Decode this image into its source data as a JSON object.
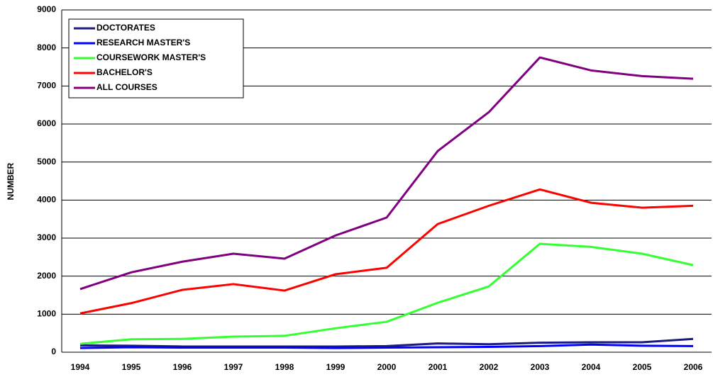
{
  "chart_data": {
    "type": "line",
    "y_label": "NUMBER",
    "categories": [
      "1994",
      "1995",
      "1996",
      "1997",
      "1998",
      "1999",
      "2000",
      "2001",
      "2002",
      "2003",
      "2004",
      "2005",
      "2006"
    ],
    "series": [
      {
        "name": "DOCTORATES",
        "color": "#1c1c80",
        "values": [
          180,
          170,
          150,
          150,
          150,
          150,
          160,
          230,
          210,
          250,
          260,
          260,
          350
        ]
      },
      {
        "name": "RESEARCH MASTER'S",
        "color": "#0000ff",
        "values": [
          110,
          130,
          120,
          120,
          120,
          110,
          120,
          130,
          140,
          160,
          200,
          170,
          160
        ]
      },
      {
        "name": "COURSEWORK MASTER'S",
        "color": "#33ff33",
        "values": [
          220,
          340,
          350,
          410,
          430,
          630,
          800,
          1300,
          1730,
          2850,
          2770,
          2590,
          2290
        ]
      },
      {
        "name": "BACHELOR'S",
        "color": "#ff0000",
        "values": [
          1020,
          1290,
          1640,
          1790,
          1620,
          2050,
          2220,
          3370,
          3850,
          4280,
          3930,
          3800,
          3850
        ]
      },
      {
        "name": "ALL COURSES",
        "color": "#800080",
        "values": [
          1660,
          2100,
          2380,
          2590,
          2460,
          3070,
          3540,
          5290,
          6310,
          7750,
          7410,
          7260,
          7190
        ]
      }
    ],
    "ylim": [
      0,
      9000
    ],
    "yticks": [
      0,
      1000,
      2000,
      3000,
      4000,
      5000,
      6000,
      7000,
      8000,
      9000
    ],
    "grid": true
  }
}
